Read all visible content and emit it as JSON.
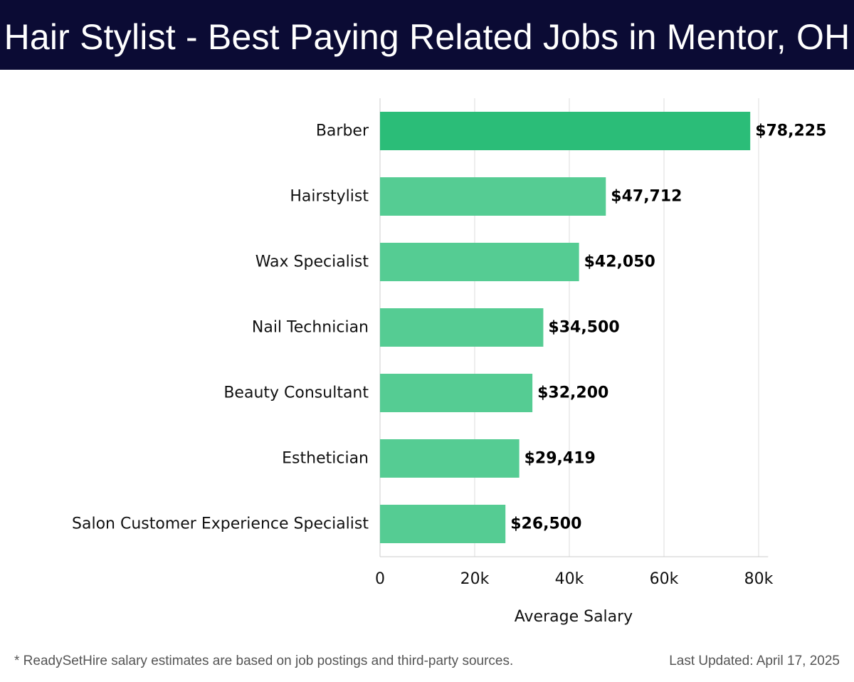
{
  "header": {
    "title": "Hair Stylist - Best Paying Related Jobs in Mentor, OH"
  },
  "footer": {
    "note": "* ReadySetHire salary estimates are based on job postings and third-party sources.",
    "updated": "Last Updated: April 17, 2025"
  },
  "colors": {
    "header_bg": "#0b0b34",
    "top_bar": "#2bbd78",
    "bar": "#55cc93",
    "grid": "#dddddd"
  },
  "chart_data": {
    "type": "bar",
    "orientation": "horizontal",
    "title": "Hair Stylist - Best Paying Related Jobs in Mentor, OH",
    "xlabel": "Average Salary",
    "ylabel": "",
    "categories": [
      "Barber",
      "Hairstylist",
      "Wax Specialist",
      "Nail Technician",
      "Beauty Consultant",
      "Esthetician",
      "Salon Customer Experience Specialist"
    ],
    "values": [
      78225,
      47712,
      42050,
      34500,
      32200,
      29419,
      26500
    ],
    "value_labels": [
      "$78,225",
      "$47,712",
      "$42,050",
      "$34,500",
      "$32,200",
      "$29,419",
      "$26,500"
    ],
    "xlim": [
      0,
      82000
    ],
    "xticks": [
      0,
      20000,
      40000,
      60000,
      80000
    ],
    "xtick_labels": [
      "0",
      "20k",
      "40k",
      "60k",
      "80k"
    ],
    "grid": true,
    "legend": "none"
  }
}
